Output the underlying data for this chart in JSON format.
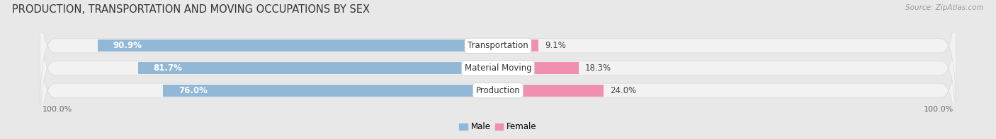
{
  "title": "PRODUCTION, TRANSPORTATION AND MOVING OCCUPATIONS BY SEX",
  "source": "Source: ZipAtlas.com",
  "categories": [
    "Transportation",
    "Material Moving",
    "Production"
  ],
  "male_values": [
    90.9,
    81.7,
    76.0
  ],
  "female_values": [
    9.1,
    18.3,
    24.0
  ],
  "male_color": "#92b8d8",
  "female_color": "#f090b0",
  "male_label": "Male",
  "female_label": "Female",
  "bar_height": 0.52,
  "bg_color": "#e8e8e8",
  "row_bg_color": "#f2f2f2",
  "row_bg_border": "#d8d8d8",
  "title_fontsize": 10.5,
  "label_fontsize": 8.5,
  "tick_fontsize": 8,
  "x_left_label": "100.0%",
  "x_right_label": "100.0%"
}
